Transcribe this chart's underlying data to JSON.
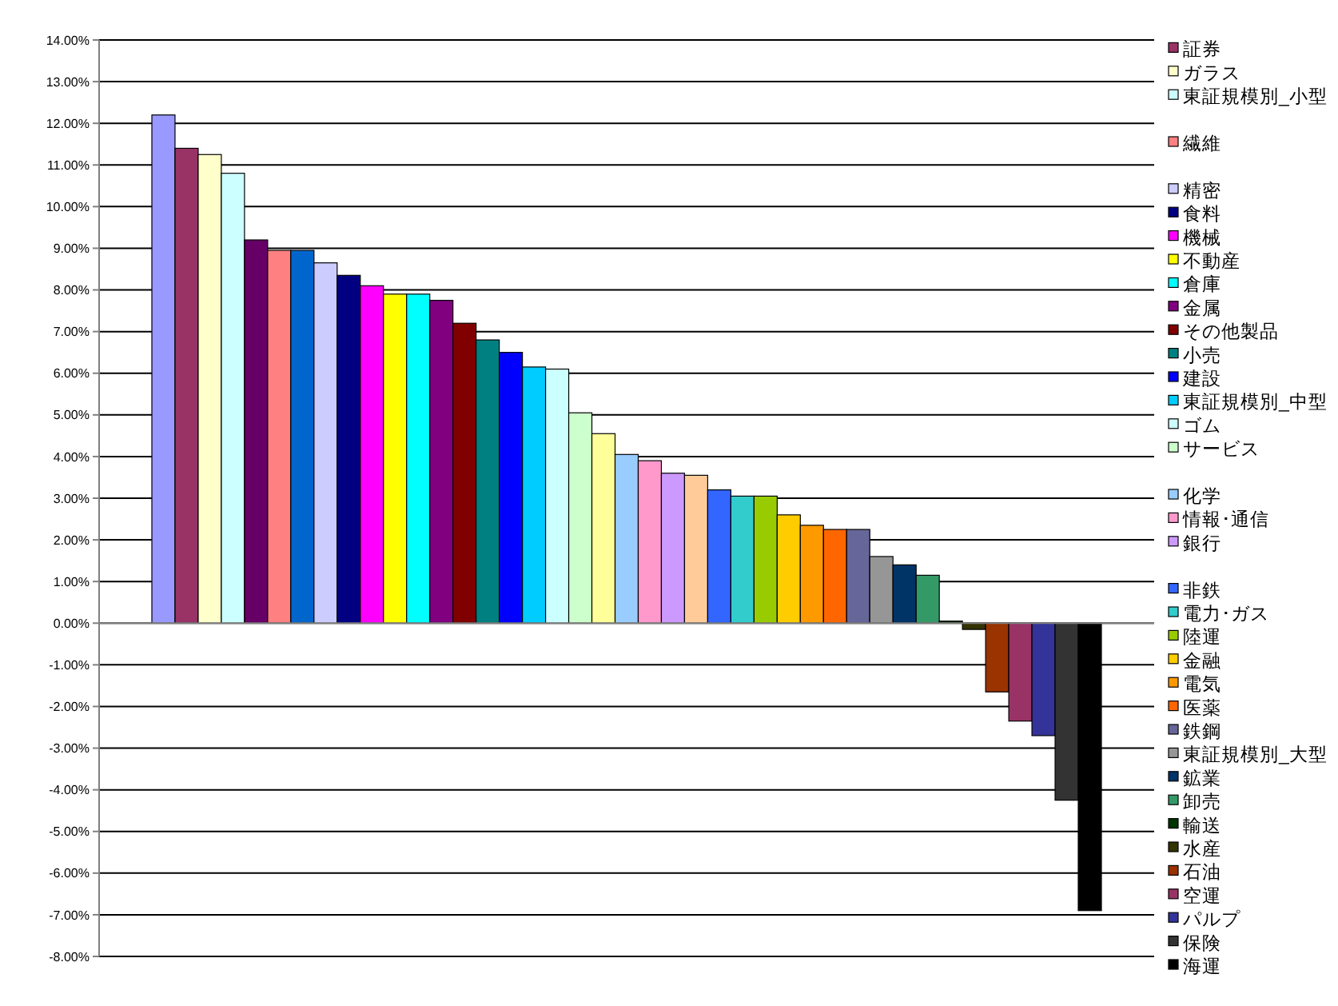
{
  "chart_data": {
    "type": "bar",
    "categories": [
      null
    ],
    "ylim": [
      -8,
      14
    ],
    "yticks": [
      {
        "value": -8,
        "label": "-8.00%"
      },
      {
        "value": -7,
        "label": "-7.00%"
      },
      {
        "value": -6,
        "label": "-6.00%"
      },
      {
        "value": -5,
        "label": "-5.00%"
      },
      {
        "value": -4,
        "label": "-4.00%"
      },
      {
        "value": -3,
        "label": "-3.00%"
      },
      {
        "value": -2,
        "label": "-2.00%"
      },
      {
        "value": -1,
        "label": "-1.00%"
      },
      {
        "value": 0,
        "label": "0.00%"
      },
      {
        "value": 1,
        "label": "1.00%"
      },
      {
        "value": 2,
        "label": "2.00%"
      },
      {
        "value": 3,
        "label": "3.00%"
      },
      {
        "value": 4,
        "label": "4.00%"
      },
      {
        "value": 5,
        "label": "5.00%"
      },
      {
        "value": 6,
        "label": "6.00%"
      },
      {
        "value": 7,
        "label": "7.00%"
      },
      {
        "value": 8,
        "label": "8.00%"
      },
      {
        "value": 9,
        "label": "9.00%"
      },
      {
        "value": 10,
        "label": "10.00%"
      },
      {
        "value": 11,
        "label": "11.00%"
      },
      {
        "value": 12,
        "label": "12.00%"
      },
      {
        "value": 13,
        "label": "13.00%"
      },
      {
        "value": 14,
        "label": "14.00%"
      }
    ],
    "grid": "y",
    "legend": "right",
    "series": [
      {
        "color": "#9999ff",
        "values": [
          12.2
        ]
      },
      {
        "name": "証券",
        "color": "#993366",
        "values": [
          11.4
        ]
      },
      {
        "name": "ガラス",
        "color": "#ffffcc",
        "values": [
          11.25
        ]
      },
      {
        "name": "東証規模別_小型",
        "color": "#ccffff",
        "values": [
          10.8
        ]
      },
      {
        "color": "#660066",
        "values": [
          9.2
        ]
      },
      {
        "name": "繊維",
        "color": "#ff8080",
        "values": [
          8.95
        ]
      },
      {
        "color": "#0066cc",
        "values": [
          8.95
        ]
      },
      {
        "name": "精密",
        "color": "#ccccff",
        "values": [
          8.65
        ]
      },
      {
        "name": "食料",
        "color": "#000080",
        "values": [
          8.35
        ]
      },
      {
        "name": "機械",
        "color": "#ff00ff",
        "values": [
          8.1
        ]
      },
      {
        "name": "不動産",
        "color": "#ffff00",
        "values": [
          7.9
        ]
      },
      {
        "name": "倉庫",
        "color": "#00ffff",
        "values": [
          7.9
        ]
      },
      {
        "name": "金属",
        "color": "#800080",
        "values": [
          7.75
        ]
      },
      {
        "name": "その他製品",
        "color": "#800000",
        "values": [
          7.2
        ]
      },
      {
        "name": "小売",
        "color": "#008080",
        "values": [
          6.8
        ]
      },
      {
        "name": "建設",
        "color": "#0000ff",
        "values": [
          6.5
        ]
      },
      {
        "name": "東証規模別_中型",
        "color": "#00ccff",
        "values": [
          6.15
        ]
      },
      {
        "name": "ゴム",
        "color": "#ccffff",
        "values": [
          6.1
        ]
      },
      {
        "name": "サービス",
        "color": "#ccffcc",
        "values": [
          5.05
        ]
      },
      {
        "color": "#ffff99",
        "values": [
          4.55
        ]
      },
      {
        "name": "化学",
        "color": "#99ccff",
        "values": [
          4.05
        ]
      },
      {
        "name": "情報･通信",
        "color": "#ff99cc",
        "values": [
          3.9
        ]
      },
      {
        "name": "銀行",
        "color": "#cc99ff",
        "values": [
          3.6
        ]
      },
      {
        "color": "#ffcc99",
        "values": [
          3.55
        ]
      },
      {
        "name": "非鉄",
        "color": "#3366ff",
        "values": [
          3.2
        ]
      },
      {
        "name": "電力･ガス",
        "color": "#33cccc",
        "values": [
          3.05
        ]
      },
      {
        "name": "陸運",
        "color": "#99cc00",
        "values": [
          3.05
        ]
      },
      {
        "name": "金融",
        "color": "#ffcc00",
        "values": [
          2.6
        ]
      },
      {
        "name": "電気",
        "color": "#ff9900",
        "values": [
          2.35
        ]
      },
      {
        "name": "医薬",
        "color": "#ff6600",
        "values": [
          2.25
        ]
      },
      {
        "name": "鉄鋼",
        "color": "#666699",
        "values": [
          2.25
        ]
      },
      {
        "name": "東証規模別_大型",
        "color": "#969696",
        "values": [
          1.6
        ]
      },
      {
        "name": "鉱業",
        "color": "#003366",
        "values": [
          1.4
        ]
      },
      {
        "name": "卸売",
        "color": "#339966",
        "values": [
          1.15
        ]
      },
      {
        "name": "輸送",
        "color": "#003300",
        "values": [
          0.05
        ]
      },
      {
        "name": "水産",
        "color": "#333300",
        "values": [
          -0.15
        ]
      },
      {
        "name": "石油",
        "color": "#993300",
        "values": [
          -1.65
        ]
      },
      {
        "name": "空運",
        "color": "#993366",
        "values": [
          -2.35
        ]
      },
      {
        "name": "パルプ",
        "color": "#333399",
        "values": [
          -2.7
        ]
      },
      {
        "name": "保険",
        "color": "#333333",
        "values": [
          -4.25
        ]
      },
      {
        "name": "海運",
        "color": "#000000",
        "values": [
          -6.9
        ]
      }
    ]
  }
}
